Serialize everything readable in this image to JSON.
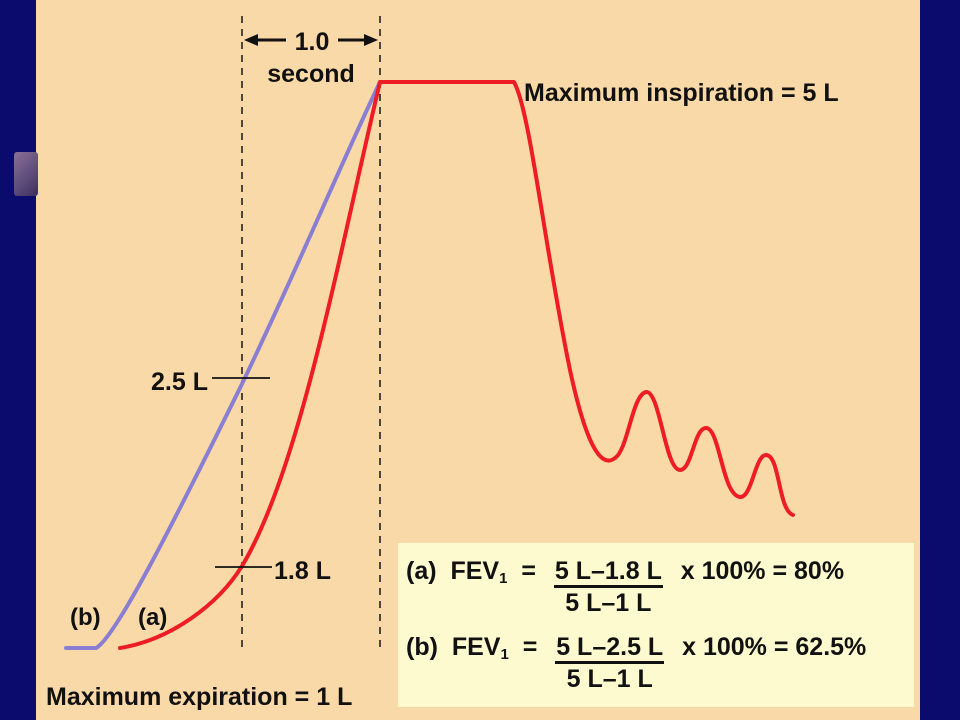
{
  "diagram": {
    "time_label_value": "1.0",
    "time_label_unit": "second",
    "max_inspiration_label": "Maximum inspiration = 5 L",
    "max_expiration_label": "Maximum expiration = 1 L",
    "marker_b_value": "2.5 L",
    "marker_a_value": "1.8 L",
    "curve_b_label": "(b)",
    "curve_a_label": "(a)",
    "colors": {
      "curve_a": "#ee1c24",
      "curve_b": "#8a7ed2",
      "background": "#fad9a8",
      "frame": "#0b0b6e"
    }
  },
  "formulas": [
    {
      "label": "(a)",
      "fev": "FEV",
      "sub": "1",
      "equals": " = ",
      "numerator": "5 L–1.8 L",
      "denominator": "5 L–1 L",
      "result": " x 100% = 80%"
    },
    {
      "label": "(b)",
      "fev": "FEV",
      "sub": "1",
      "equals": " = ",
      "numerator": "5 L–2.5 L",
      "denominator": "5 L–1 L",
      "result": " x 100% = 62.5%"
    }
  ]
}
